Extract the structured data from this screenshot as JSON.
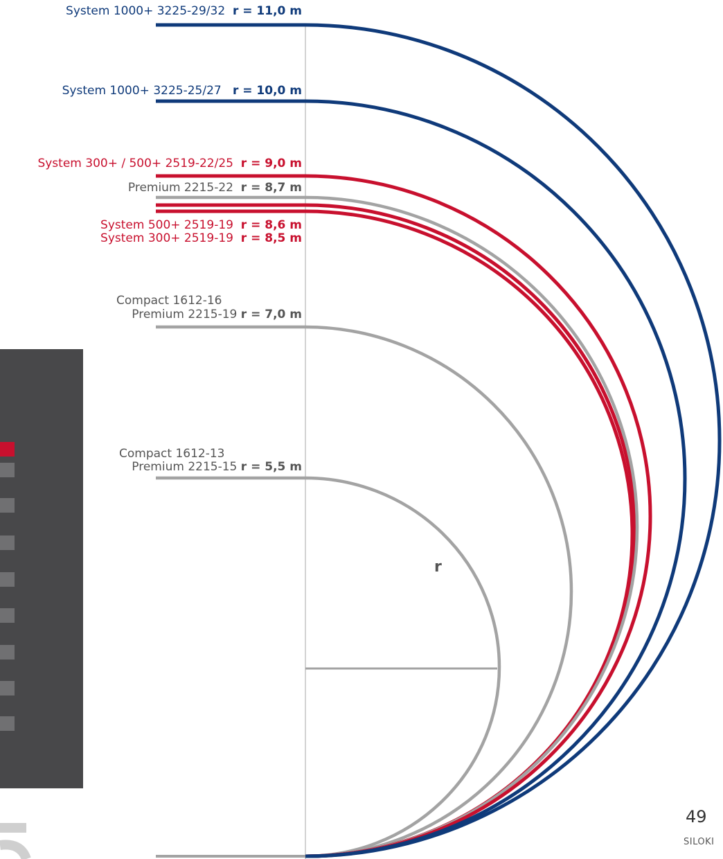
{
  "curves": [
    {
      "id": "s1000-29",
      "line1": "",
      "text": "System 1000+ 3225-29/32",
      "radius_label": "r = 11,0 m",
      "radius_m": 11.0,
      "color": "#0f3a7a",
      "group": "blue"
    },
    {
      "id": "s1000-25",
      "line1": "",
      "text": "System 1000+ 3225-25/27",
      "radius_label": "r = 10,0 m",
      "radius_m": 10.0,
      "color": "#0f3a7a",
      "group": "blue"
    },
    {
      "id": "s300-500",
      "line1": "",
      "text": "System 300+ / 500+ 2519-22/25",
      "radius_label": "r = 9,0 m",
      "radius_m": 9.0,
      "color": "#c8102e",
      "group": "red"
    },
    {
      "id": "p2215-22",
      "line1": "",
      "text": "Premium 2215-22",
      "radius_label": "r = 8,7 m",
      "radius_m": 8.7,
      "color": "#a3a3a3",
      "group": "gray"
    },
    {
      "id": "s500-19",
      "line1": "",
      "text": "System 500+ 2519-19",
      "radius_label": "r = 8,6 m",
      "radius_m": 8.6,
      "color": "#c8102e",
      "group": "red"
    },
    {
      "id": "s300-19",
      "line1": "",
      "text": "System 300+ 2519-19",
      "radius_label": "r = 8,5 m",
      "radius_m": 8.5,
      "color": "#c8102e",
      "group": "red"
    },
    {
      "id": "c16-p19",
      "line1": "Compact 1612-16",
      "text": "Premium 2215-19",
      "radius_label": "r = 7,0 m",
      "radius_m": 7.0,
      "color": "#a3a3a3",
      "group": "gray"
    },
    {
      "id": "c13-p15",
      "line1": "Compact 1612-13",
      "text": "Premium 2215-15",
      "radius_label": "r = 5,5 m",
      "radius_m": 5.5,
      "color": "#a3a3a3",
      "group": "gray"
    }
  ],
  "radius_marker": "r",
  "page_number": "49",
  "brand": "SILOKI",
  "sidebar": {
    "item_count": 8,
    "active_index": 0,
    "bg_color": "#48484a",
    "accent_color": "#c8102e"
  }
}
